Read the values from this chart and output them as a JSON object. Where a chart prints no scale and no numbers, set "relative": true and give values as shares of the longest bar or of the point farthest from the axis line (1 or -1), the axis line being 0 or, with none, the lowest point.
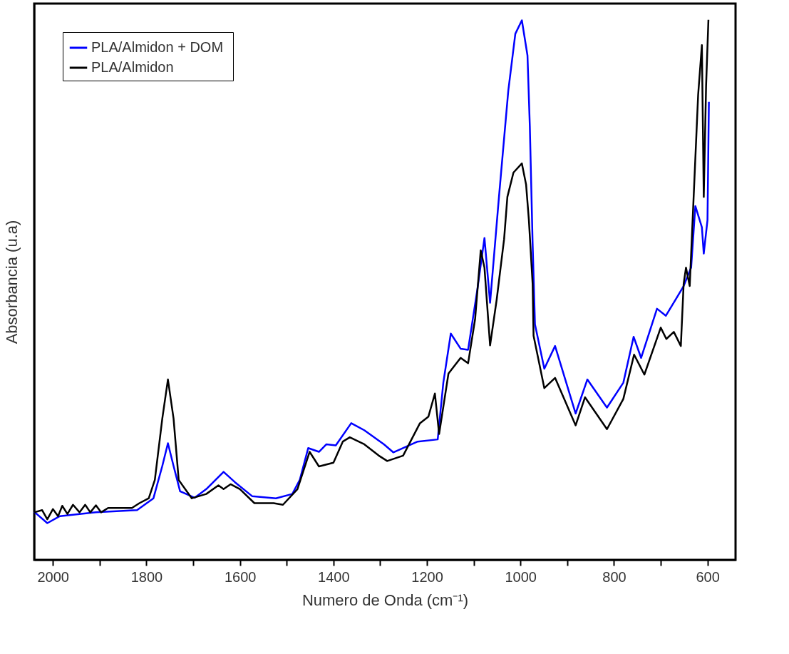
{
  "chart_data": {
    "type": "line",
    "relative": true,
    "xlabel": "Numero de Onda (cm⁻¹)",
    "ylabel": "Absorbancia (u.a)",
    "xlim": [
      2040,
      540
    ],
    "xticks": [
      2000,
      {
        "value": 1900,
        "label": null
      },
      1800,
      {
        "value": 1700,
        "label": null
      },
      1600,
      {
        "value": 1500,
        "label": null
      },
      1400,
      {
        "value": 1300,
        "label": null
      },
      1200,
      {
        "value": 1100,
        "label": null
      },
      1000,
      {
        "value": 900,
        "label": null
      },
      800,
      {
        "value": 700,
        "label": null
      },
      600
    ],
    "grid": false,
    "legend": "top left",
    "marker": "none",
    "line_style": "solid",
    "series": [
      {
        "name": "PLA/Almidon +  DOM",
        "color": "#0000ff",
        "x": [
          2040,
          2012,
          1985,
          1908,
          1820,
          1785,
          1766,
          1754,
          1742,
          1728,
          1697,
          1672,
          1635,
          1611,
          1574,
          1523,
          1488,
          1472,
          1454,
          1431,
          1415,
          1395,
          1362,
          1334,
          1292,
          1272,
          1220,
          1177,
          1165,
          1149,
          1128,
          1112,
          1092,
          1077,
          1065,
          1046,
          1026,
          1011,
          997,
          985,
          980,
          974,
          969,
          949,
          926,
          882,
          857,
          815,
          780,
          758,
          742,
          708,
          689,
          666,
          651,
          635,
          626,
          612,
          608,
          600,
          597
        ],
        "values": [
          0.089,
          0.068,
          0.081,
          0.088,
          0.092,
          0.114,
          0.174,
          0.216,
          0.174,
          0.127,
          0.115,
          0.131,
          0.163,
          0.144,
          0.118,
          0.114,
          0.122,
          0.148,
          0.207,
          0.2,
          0.214,
          0.212,
          0.253,
          0.24,
          0.214,
          0.199,
          0.219,
          0.223,
          0.328,
          0.419,
          0.391,
          0.389,
          0.502,
          0.596,
          0.476,
          0.672,
          0.869,
          0.974,
          0.999,
          0.934,
          0.803,
          0.586,
          0.436,
          0.354,
          0.396,
          0.271,
          0.334,
          0.282,
          0.328,
          0.413,
          0.374,
          0.465,
          0.452,
          0.485,
          0.507,
          0.541,
          0.655,
          0.616,
          0.567,
          0.629,
          0.848
        ]
      },
      {
        "name": "PLA/Almidon",
        "color": "#000000",
        "x": [
          2040,
          2023,
          2012,
          2000,
          1989,
          1980,
          1969,
          1957,
          1943,
          1931,
          1920,
          1908,
          1897,
          1882,
          1831,
          1815,
          1795,
          1782,
          1766,
          1754,
          1742,
          1731,
          1703,
          1672,
          1646,
          1635,
          1620,
          1600,
          1569,
          1528,
          1508,
          1477,
          1451,
          1431,
          1400,
          1380,
          1365,
          1334,
          1303,
          1285,
          1251,
          1215,
          1197,
          1183,
          1174,
          1154,
          1128,
          1112,
          1097,
          1085,
          1077,
          1065,
          1051,
          1035,
          1028,
          1015,
          997,
          988,
          982,
          974,
          972,
          949,
          926,
          882,
          862,
          815,
          780,
          757,
          735,
          700,
          688,
          672,
          657,
          651,
          646,
          638,
          620,
          612,
          608,
          603,
          598
        ],
        "values": [
          0.088,
          0.092,
          0.075,
          0.094,
          0.081,
          0.1,
          0.085,
          0.102,
          0.088,
          0.102,
          0.088,
          0.101,
          0.088,
          0.096,
          0.096,
          0.105,
          0.114,
          0.148,
          0.262,
          0.334,
          0.262,
          0.148,
          0.114,
          0.122,
          0.138,
          0.131,
          0.14,
          0.131,
          0.105,
          0.105,
          0.102,
          0.131,
          0.2,
          0.173,
          0.18,
          0.219,
          0.227,
          0.214,
          0.193,
          0.183,
          0.193,
          0.253,
          0.265,
          0.308,
          0.233,
          0.345,
          0.374,
          0.364,
          0.446,
          0.573,
          0.541,
          0.397,
          0.481,
          0.594,
          0.672,
          0.717,
          0.734,
          0.695,
          0.629,
          0.511,
          0.415,
          0.318,
          0.337,
          0.249,
          0.301,
          0.242,
          0.298,
          0.38,
          0.343,
          0.43,
          0.409,
          0.422,
          0.396,
          0.511,
          0.541,
          0.507,
          0.861,
          0.953,
          0.672,
          0.878,
          1.0
        ]
      }
    ]
  }
}
